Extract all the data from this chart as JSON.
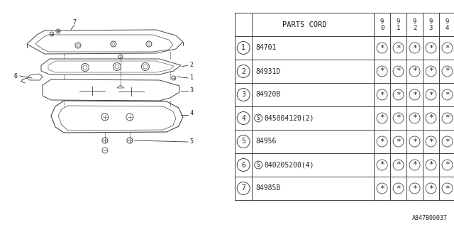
{
  "bg_color": "#ffffff",
  "line_color": "#444444",
  "text_color": "#222222",
  "header_col": "PARTS CORD",
  "year_cols": [
    "9\n0",
    "9\n1",
    "9\n2",
    "9\n3",
    "9\n4"
  ],
  "rows": [
    {
      "num": "1",
      "code": "84701",
      "special": false
    },
    {
      "num": "2",
      "code": "84931D",
      "special": false
    },
    {
      "num": "3",
      "code": "84920B",
      "special": false
    },
    {
      "num": "4",
      "code": "045004120(2)",
      "special": true
    },
    {
      "num": "5",
      "code": "84956",
      "special": false
    },
    {
      "num": "6",
      "code": "040205200(4)",
      "special": true
    },
    {
      "num": "7",
      "code": "84985B",
      "special": false
    }
  ],
  "star": "*",
  "footer_text": "A847B00037"
}
